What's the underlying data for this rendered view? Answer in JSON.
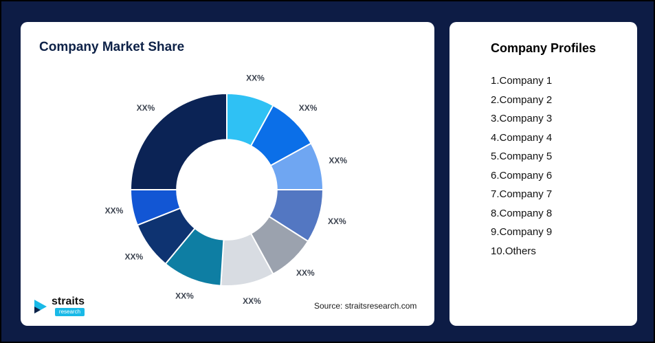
{
  "background_color": "#0D1C45",
  "accent_color": "#19B9E7",
  "left_card": {
    "title": "Company Market Share",
    "source_text": "Source: straitsresearch.com",
    "logo": {
      "brand": "straits",
      "sub_brand": "research"
    }
  },
  "right_card": {
    "title": "Company Profiles",
    "profiles": [
      "1.Company 1",
      "2.Company 2",
      "3.Company 3",
      "4.Company 4",
      "5.Company 5",
      "6.Company 6",
      "7.Company 7",
      "8.Company 8",
      "9.Company 9",
      "10.Others"
    ]
  },
  "chart_data": {
    "type": "pie",
    "subtype": "donut",
    "title": "Company Market Share",
    "labels": [
      "XX%",
      "XX%",
      "XX%",
      "XX%",
      "XX%",
      "XX%",
      "XX%",
      "XX%",
      "XX%",
      "XX%"
    ],
    "values": [
      8,
      9,
      8,
      9,
      8,
      9,
      10,
      8,
      6,
      25
    ],
    "colors": [
      "#2FC1F4",
      "#0B6FE8",
      "#6FA6F2",
      "#5377C2",
      "#9BA2AE",
      "#D8DCE2",
      "#0E7EA3",
      "#0E3371",
      "#1256D4",
      "#0B2355"
    ],
    "start_angle_deg": 0,
    "clockwise": true,
    "inner_radius_ratio": 0.52,
    "slice_gap_stroke": "#ffffff",
    "legend": "none"
  }
}
